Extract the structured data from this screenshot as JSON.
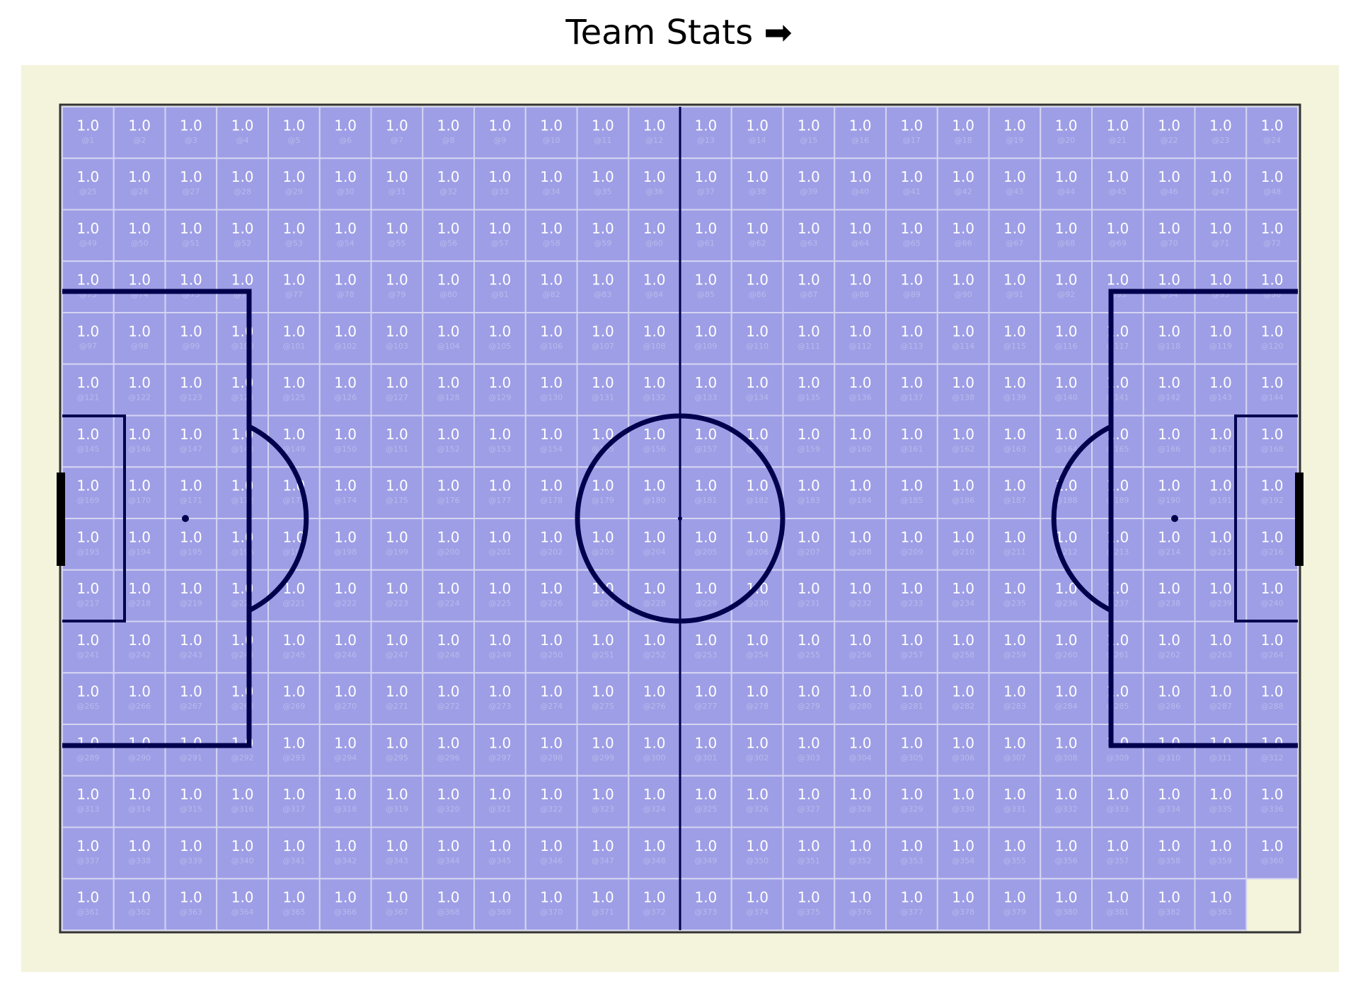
{
  "chart_data": {
    "type": "heatmap",
    "title": "Team Stats ➡",
    "grid": {
      "columns": 24,
      "rows": 16
    },
    "cell_value_label": "1.0",
    "values_count": 383,
    "values": [
      1.0,
      1.0,
      1.0,
      1.0,
      1.0,
      1.0,
      1.0,
      1.0,
      1.0,
      1.0,
      1.0,
      1.0,
      1.0,
      1.0,
      1.0,
      1.0,
      1.0,
      1.0,
      1.0,
      1.0,
      1.0,
      1.0,
      1.0,
      1.0,
      1.0,
      1.0,
      1.0,
      1.0,
      1.0,
      1.0,
      1.0,
      1.0,
      1.0,
      1.0,
      1.0,
      1.0,
      1.0,
      1.0,
      1.0,
      1.0,
      1.0,
      1.0,
      1.0,
      1.0,
      1.0,
      1.0,
      1.0,
      1.0,
      1.0,
      1.0,
      1.0,
      1.0,
      1.0,
      1.0,
      1.0,
      1.0,
      1.0,
      1.0,
      1.0,
      1.0,
      1.0,
      1.0,
      1.0,
      1.0,
      1.0,
      1.0,
      1.0,
      1.0,
      1.0,
      1.0,
      1.0,
      1.0,
      1.0,
      1.0,
      1.0,
      1.0,
      1.0,
      1.0,
      1.0,
      1.0,
      1.0,
      1.0,
      1.0,
      1.0,
      1.0,
      1.0,
      1.0,
      1.0,
      1.0,
      1.0,
      1.0,
      1.0,
      1.0,
      1.0,
      1.0,
      1.0,
      1.0,
      1.0,
      1.0,
      1.0,
      1.0,
      1.0,
      1.0,
      1.0,
      1.0,
      1.0,
      1.0,
      1.0,
      1.0,
      1.0,
      1.0,
      1.0,
      1.0,
      1.0,
      1.0,
      1.0,
      1.0,
      1.0,
      1.0,
      1.0,
      1.0,
      1.0,
      1.0,
      1.0,
      1.0,
      1.0,
      1.0,
      1.0,
      1.0,
      1.0,
      1.0,
      1.0,
      1.0,
      1.0,
      1.0,
      1.0,
      1.0,
      1.0,
      1.0,
      1.0,
      1.0,
      1.0,
      1.0,
      1.0,
      1.0,
      1.0,
      1.0,
      1.0,
      1.0,
      1.0,
      1.0,
      1.0,
      1.0,
      1.0,
      1.0,
      1.0,
      1.0,
      1.0,
      1.0,
      1.0,
      1.0,
      1.0,
      1.0,
      1.0,
      1.0,
      1.0,
      1.0,
      1.0,
      1.0,
      1.0,
      1.0,
      1.0,
      1.0,
      1.0,
      1.0,
      1.0,
      1.0,
      1.0,
      1.0,
      1.0,
      1.0,
      1.0,
      1.0,
      1.0,
      1.0,
      1.0,
      1.0,
      1.0,
      1.0,
      1.0,
      1.0,
      1.0,
      1.0,
      1.0,
      1.0,
      1.0,
      1.0,
      1.0,
      1.0,
      1.0,
      1.0,
      1.0,
      1.0,
      1.0,
      1.0,
      1.0,
      1.0,
      1.0,
      1.0,
      1.0,
      1.0,
      1.0,
      1.0,
      1.0,
      1.0,
      1.0,
      1.0,
      1.0,
      1.0,
      1.0,
      1.0,
      1.0,
      1.0,
      1.0,
      1.0,
      1.0,
      1.0,
      1.0,
      1.0,
      1.0,
      1.0,
      1.0,
      1.0,
      1.0,
      1.0,
      1.0,
      1.0,
      1.0,
      1.0,
      1.0,
      1.0,
      1.0,
      1.0,
      1.0,
      1.0,
      1.0,
      1.0,
      1.0,
      1.0,
      1.0,
      1.0,
      1.0,
      1.0,
      1.0,
      1.0,
      1.0,
      1.0,
      1.0,
      1.0,
      1.0,
      1.0,
      1.0,
      1.0,
      1.0,
      1.0,
      1.0,
      1.0,
      1.0,
      1.0,
      1.0,
      1.0,
      1.0,
      1.0,
      1.0,
      1.0,
      1.0,
      1.0,
      1.0,
      1.0,
      1.0,
      1.0,
      1.0,
      1.0,
      1.0,
      1.0,
      1.0,
      1.0,
      1.0,
      1.0,
      1.0,
      1.0,
      1.0,
      1.0,
      1.0,
      1.0,
      1.0,
      1.0,
      1.0,
      1.0,
      1.0,
      1.0,
      1.0,
      1.0,
      1.0,
      1.0,
      1.0,
      1.0,
      1.0,
      1.0,
      1.0,
      1.0,
      1.0,
      1.0,
      1.0,
      1.0,
      1.0,
      1.0,
      1.0,
      1.0,
      1.0,
      1.0,
      1.0,
      1.0,
      1.0,
      1.0,
      1.0,
      1.0,
      1.0,
      1.0,
      1.0,
      1.0,
      1.0,
      1.0,
      1.0,
      1.0,
      1.0,
      1.0,
      1.0,
      1.0,
      1.0,
      1.0,
      1.0,
      1.0,
      1.0,
      1.0,
      1.0,
      1.0,
      1.0,
      1.0,
      1.0,
      1.0,
      1.0,
      1.0,
      1.0,
      1.0,
      1.0,
      1.0,
      1.0,
      1.0,
      1.0,
      1.0,
      1.0,
      1.0,
      1.0,
      1.0,
      1.0,
      1.0,
      1.0,
      1.0,
      1.0,
      1.0,
      1.0,
      1.0,
      1.0,
      1.0,
      1.0,
      1.0,
      1.0,
      1.0,
      1.0,
      1.0,
      1.0,
      1.0
    ],
    "id_label_prefix": "@",
    "grid_on": true,
    "legend": "none"
  },
  "colors": {
    "page_background": "#ffffff",
    "outer_background": "#f4f3dc",
    "cell_fill": "#9e9ee6",
    "cell_border": "#d4d4f2",
    "pitch_lines": "#00004d",
    "value_text": "#ffffff",
    "id_text": "#b9b9ee"
  }
}
